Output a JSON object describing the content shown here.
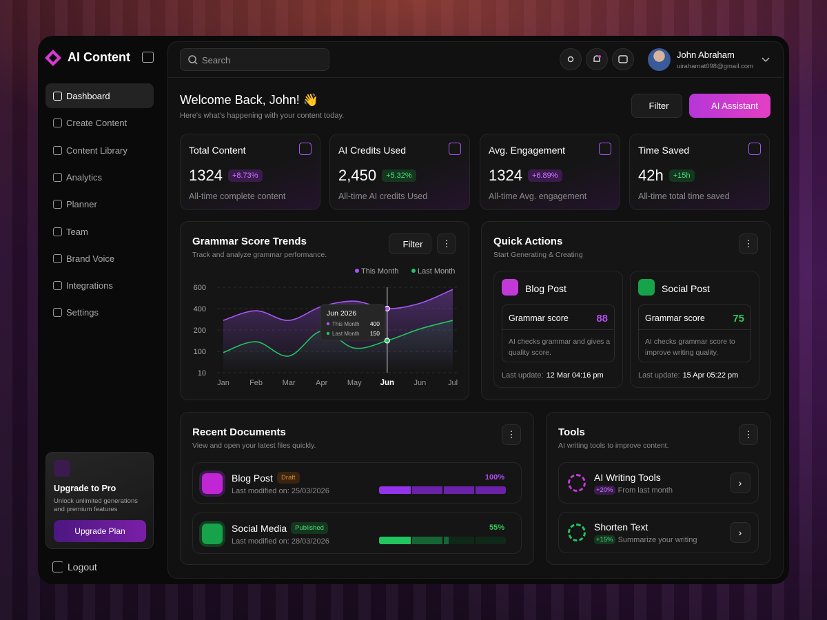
{
  "sidebar": {
    "brand": "AI Content",
    "nav": [
      "Dashboard",
      "Create Content",
      "Content Library",
      "Analytics",
      "Planner",
      "Team",
      "Brand Voice",
      "Integrations",
      "Settings"
    ],
    "upgrade": {
      "title": "Upgrade to Pro",
      "text": "Unlock unlimited generations and premium features",
      "button": "Upgrade Plan"
    },
    "logout": "Logout"
  },
  "topbar": {
    "search": "Search",
    "user": {
      "name": "John Abraham",
      "email": "uirahamat098@gmail.com"
    }
  },
  "header": {
    "title": "Welcome Back, John! 👋",
    "subtitle": "Here's what's happening with your content today.",
    "filter": "Filter",
    "assistant": "AI Assistant"
  },
  "stats": [
    {
      "label": "Total Content",
      "value": "1324",
      "change": "+8.73%",
      "caption": "All-time complete content"
    },
    {
      "label": "AI Credits Used",
      "value": "2,450",
      "change": "+5.32%",
      "caption": "All-time AI credits Used"
    },
    {
      "label": "Avg. Engagement",
      "value": "1324",
      "change": "+6.89%",
      "caption": "All-time Avg. engagement"
    },
    {
      "label": "Time Saved",
      "value": "42h",
      "change": "+15h",
      "caption": "All-time total time saved"
    }
  ],
  "chart_data": {
    "type": "line",
    "title": "Grammar Score Trends",
    "subtitle": "Track and analyze grammar performance.",
    "filter": "Filter",
    "categories": [
      "Jan",
      "Feb",
      "Mar",
      "Apr",
      "May",
      "Jun",
      "Jun",
      "Jul"
    ],
    "series": [
      {
        "name": "This Month",
        "color": "#a855f7",
        "values": [
          290,
          380,
          290,
          420,
          470,
          400,
          450,
          580
        ]
      },
      {
        "name": "Last Month",
        "color": "#22c55e",
        "values": [
          95,
          145,
          80,
          195,
          115,
          150,
          210,
          290
        ]
      }
    ],
    "ylim": [
      10,
      600
    ],
    "yticks": [
      10,
      100,
      200,
      400,
      600
    ],
    "grid": true,
    "tooltip_title": "Jun 2026"
  },
  "quick_actions": {
    "title": "Quick Actions",
    "subtitle": "Start Generating & Creating",
    "cards": [
      {
        "title": "Blog Post",
        "metric": "Grammar score",
        "score": 88,
        "text": "AI checks grammar and gives a quality score.",
        "update_label": "Last update:",
        "update": "12 Mar 04:16 pm"
      },
      {
        "title": "Social Post",
        "metric": "Grammar score",
        "score": 75,
        "text": "AI checks grammar score to improve writing quality.",
        "update_label": "Last update:",
        "update": "15 Apr 05:22 pm"
      }
    ]
  },
  "recent": {
    "title": "Recent Documents",
    "subtitle": "View and open your latest files quickly.",
    "docs": [
      {
        "title": "Blog Post",
        "status": "Draft",
        "modified": "Last modified on: 25/03/2026",
        "progress": 100,
        "progress_label": "100%"
      },
      {
        "title": "Social Media",
        "status": "Published",
        "modified": "Last modified on: 28/03/2026",
        "progress": 55,
        "progress_label": "55%"
      }
    ]
  },
  "tools": {
    "title": "Tools",
    "subtitle": "AI writing tools to improve content.",
    "items": [
      {
        "name": "AI Writing Tools",
        "change": "+20%",
        "text": "From last month"
      },
      {
        "name": "Shorten Text",
        "change": "+15%",
        "text": "Summarize your writing"
      }
    ]
  }
}
